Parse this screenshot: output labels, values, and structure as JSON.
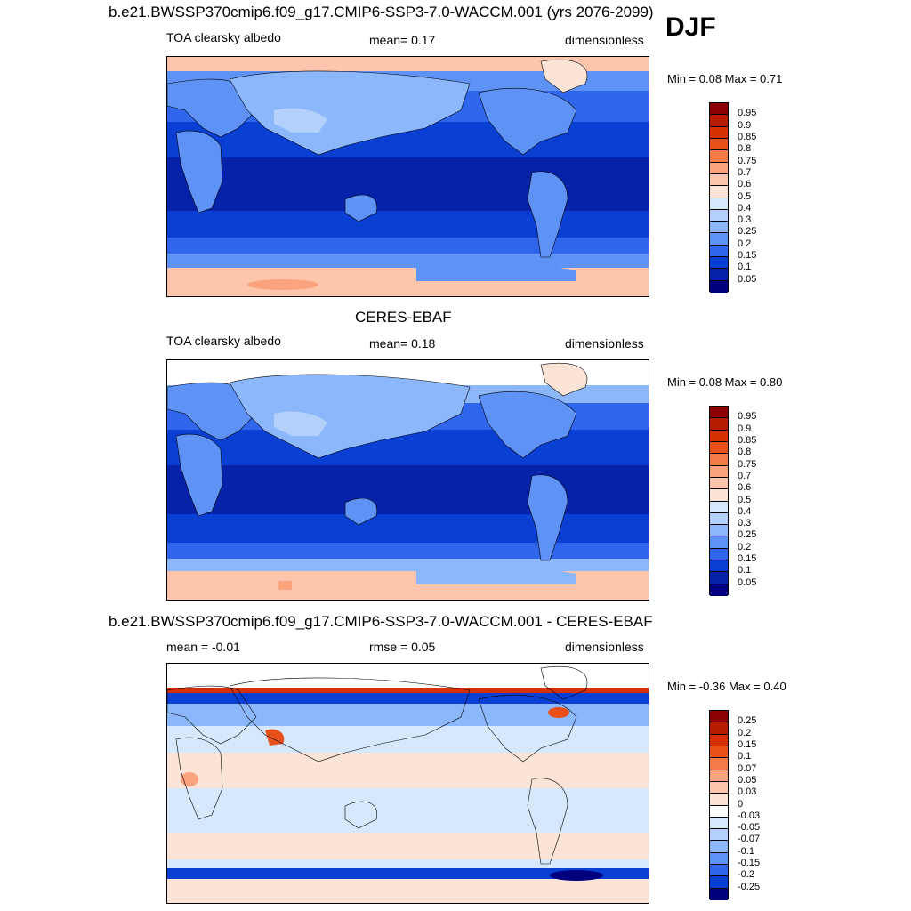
{
  "season": "DJF",
  "panels": [
    {
      "title": "b.e21.BWSSP370cmip6.f09_g17.CMIP6-SSP3-7.0-WACCM.001 (yrs 2076-2099)",
      "left": "TOA clearsky albedo",
      "center": "mean=   0.17",
      "right": "dimensionless",
      "minmax": "Min =   0.08 Max =   0.71"
    },
    {
      "title": "CERES-EBAF",
      "left": "TOA clearsky albedo",
      "center": "mean=   0.18",
      "right": "dimensionless",
      "minmax": "Min =   0.08 Max =   0.80"
    },
    {
      "title": "b.e21.BWSSP370cmip6.f09_g17.CMIP6-SSP3-7.0-WACCM.001 - CERES-EBAF",
      "left": "mean =  -0.01",
      "center": "rmse =   0.05",
      "right": "dimensionless",
      "minmax": "Min =  -0.36 Max =   0.40"
    }
  ],
  "chart_data": [
    {
      "type": "heatmap",
      "title": "b.e21.BWSSP370cmip6.f09_g17.CMIP6-SSP3-7.0-WACCM.001 (yrs 2076-2099)",
      "variable": "TOA clearsky albedo",
      "units": "dimensionless",
      "mean": 0.17,
      "min": 0.08,
      "max": 0.71,
      "colorbar_levels": [
        "0.95",
        "0.9",
        "0.85",
        "0.8",
        "0.75",
        "0.7",
        "0.6",
        "0.5",
        "0.4",
        "0.3",
        "0.25",
        "0.2",
        "0.15",
        "0.1",
        "0.05"
      ],
      "colorbar_colors": [
        "#8b0000",
        "#b51c00",
        "#d53000",
        "#e8501a",
        "#f47a4a",
        "#fba27f",
        "#fdc6ac",
        "#fbe4d6",
        "#d6e8fb",
        "#b3d1fb",
        "#8db7fb",
        "#5f92f5",
        "#2f66ec",
        "#0a3fd4",
        "#0522a8",
        "#00007f"
      ]
    },
    {
      "type": "heatmap",
      "title": "CERES-EBAF",
      "variable": "TOA clearsky albedo",
      "units": "dimensionless",
      "mean": 0.18,
      "min": 0.08,
      "max": 0.8,
      "colorbar_levels": [
        "0.95",
        "0.9",
        "0.85",
        "0.8",
        "0.75",
        "0.7",
        "0.6",
        "0.5",
        "0.4",
        "0.3",
        "0.25",
        "0.2",
        "0.15",
        "0.1",
        "0.05"
      ],
      "colorbar_colors": [
        "#8b0000",
        "#b51c00",
        "#d53000",
        "#e8501a",
        "#f47a4a",
        "#fba27f",
        "#fdc6ac",
        "#fbe4d6",
        "#d6e8fb",
        "#b3d1fb",
        "#8db7fb",
        "#5f92f5",
        "#2f66ec",
        "#0a3fd4",
        "#0522a8",
        "#00007f"
      ]
    },
    {
      "type": "heatmap",
      "title": "b.e21.BWSSP370cmip6.f09_g17.CMIP6-SSP3-7.0-WACCM.001 - CERES-EBAF",
      "units": "dimensionless",
      "mean": -0.01,
      "rmse": 0.05,
      "min": -0.36,
      "max": 0.4,
      "colorbar_levels": [
        "0.25",
        "0.2",
        "0.15",
        "0.1",
        "0.07",
        "0.05",
        "0.03",
        "0",
        "-0.03",
        "-0.05",
        "-0.07",
        "-0.1",
        "-0.15",
        "-0.2",
        "-0.25"
      ],
      "colorbar_colors": [
        "#8b0000",
        "#b51c00",
        "#d53000",
        "#e8501a",
        "#f47a4a",
        "#fba27f",
        "#fdc6ac",
        "#fbe4d6",
        "#ffffff",
        "#d6e8fb",
        "#b3d1fb",
        "#8db7fb",
        "#5f92f5",
        "#2f66ec",
        "#0a3fd4",
        "#00007f"
      ]
    }
  ]
}
